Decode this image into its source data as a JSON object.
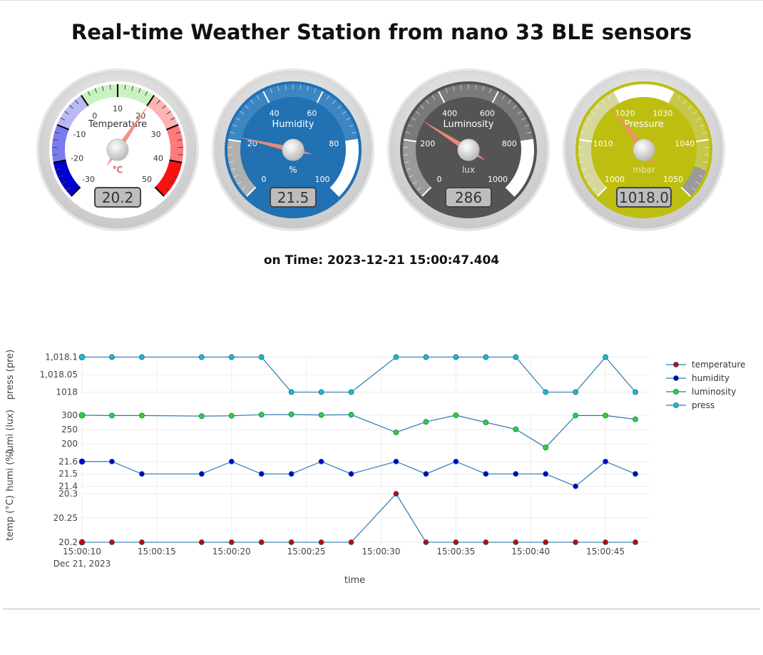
{
  "page": {
    "title": "Real-time Weather Station from nano 33 BLE sensors",
    "on_time_label": "on Time:",
    "on_time_value": "2023-12-21 15:00:47.404"
  },
  "gauges": [
    {
      "id": "temperature",
      "title": "Temperature",
      "units": "°C",
      "value": 20.2,
      "value_text": "20.2",
      "min": -30,
      "max": 50,
      "ticks": [
        "-30",
        "-20",
        "-10",
        "0",
        "10",
        "20",
        "30",
        "40",
        "50"
      ],
      "face_color": "#ffffff",
      "text_color": "#333333",
      "units_color": "#cc0000",
      "highlights": [
        {
          "from": -30,
          "to": -20,
          "color": "#0000cc"
        },
        {
          "from": -20,
          "to": -10,
          "color": "#7b7bf0"
        },
        {
          "from": -10,
          "to": 0,
          "color": "#b9b9f7"
        },
        {
          "from": 0,
          "to": 20,
          "color": "#c9f2c0"
        },
        {
          "from": 20,
          "to": 30,
          "color": "#ffb3b3"
        },
        {
          "from": 30,
          "to": 40,
          "color": "#ff7a7a"
        },
        {
          "from": 40,
          "to": 50,
          "color": "#ff1010"
        }
      ]
    },
    {
      "id": "humidity",
      "title": "Humidity",
      "units": "%",
      "value": 21.5,
      "value_text": "21.5",
      "min": 0,
      "max": 100,
      "ticks": [
        "0",
        "20",
        "40",
        "60",
        "80",
        "100"
      ],
      "face_color": "#2171b3",
      "text_color": "#ffffff",
      "units_color": "#ffffff",
      "highlights": [
        {
          "from": 0,
          "to": 20,
          "color": "#b0b0b0"
        },
        {
          "from": 20,
          "to": 80,
          "color": "#3c86c2"
        },
        {
          "from": 80,
          "to": 100,
          "color": "#ffffff"
        }
      ]
    },
    {
      "id": "luminosity",
      "title": "Luminosity",
      "units": "lux",
      "value": 286,
      "value_text": "286",
      "min": 0,
      "max": 1000,
      "ticks": [
        "0",
        "200",
        "400",
        "600",
        "800",
        "1000"
      ],
      "face_color": "#545454",
      "text_color": "#ffffff",
      "units_color": "#dddddd",
      "highlights": [
        {
          "from": 0,
          "to": 200,
          "color": "#9a9a9a"
        },
        {
          "from": 200,
          "to": 800,
          "color": "#7a7a7a"
        },
        {
          "from": 800,
          "to": 1000,
          "color": "#ffffff"
        }
      ]
    },
    {
      "id": "pressure",
      "title": "Pressure",
      "units": "mbar",
      "value": 1018.0,
      "value_text": "1018.0",
      "min": 1000,
      "max": 1050,
      "ticks": [
        "1000",
        "1010",
        "1020",
        "1030",
        "1040",
        "1050"
      ],
      "face_color": "#bdbe10",
      "text_color": "#ffffff",
      "units_color": "#e8e8a0",
      "highlights": [
        {
          "from": 1000,
          "to": 1020,
          "color": "#d6d79a"
        },
        {
          "from": 1020,
          "to": 1030,
          "color": "#ffffff"
        },
        {
          "from": 1030,
          "to": 1045,
          "color": "#c7c84a"
        },
        {
          "from": 1045,
          "to": 1050,
          "color": "#9a9a9a"
        }
      ]
    }
  ],
  "chart_data": {
    "type": "line",
    "xlabel": "time",
    "x_date_label": "Dec 21, 2023",
    "x": [
      "15:00:10",
      "15:00:12",
      "15:00:14",
      "15:00:18",
      "15:00:20",
      "15:00:22",
      "15:00:24",
      "15:00:26",
      "15:00:28",
      "15:00:31",
      "15:00:33",
      "15:00:35",
      "15:00:37",
      "15:00:39",
      "15:00:41",
      "15:00:43",
      "15:00:45",
      "15:00:47"
    ],
    "x_ticks": [
      "15:00:10",
      "15:00:15",
      "15:00:20",
      "15:00:25",
      "15:00:30",
      "15:00:35",
      "15:00:40",
      "15:00:45"
    ],
    "x_range": [
      "15:00:10",
      "15:00:48"
    ],
    "legend_position": "right",
    "grid": true,
    "series": [
      {
        "name": "temperature",
        "color": "#cc0000",
        "panel": "temp",
        "values": [
          20.2,
          20.2,
          20.2,
          20.2,
          20.2,
          20.2,
          20.2,
          20.2,
          20.2,
          20.3,
          20.2,
          20.2,
          20.2,
          20.2,
          20.2,
          20.2,
          20.2,
          20.2
        ]
      },
      {
        "name": "humidity",
        "color": "#0000cc",
        "panel": "humi",
        "values": [
          21.6,
          21.6,
          21.5,
          21.5,
          21.6,
          21.5,
          21.5,
          21.6,
          21.5,
          21.6,
          21.5,
          21.6,
          21.5,
          21.5,
          21.5,
          21.4,
          21.6,
          21.5
        ]
      },
      {
        "name": "luminosity",
        "color": "#22dd22",
        "panel": "lumi",
        "values": [
          300,
          299,
          299,
          297,
          298,
          302,
          303,
          301,
          302,
          240,
          277,
          300,
          275,
          251,
          187,
          299,
          299,
          286
        ]
      },
      {
        "name": "press",
        "color": "#17bec6",
        "panel": "press",
        "values": [
          1018.1,
          1018.1,
          1018.1,
          1018.1,
          1018.1,
          1018.1,
          1018.0,
          1018.0,
          1018.0,
          1018.1,
          1018.1,
          1018.1,
          1018.1,
          1018.1,
          1018.0,
          1018.0,
          1018.1,
          1018.0
        ]
      }
    ],
    "panels": [
      {
        "id": "press",
        "ylabel": "press (pre)",
        "ylim": [
          1017.995,
          1018.105
        ],
        "ticks": [
          1018.1,
          1018.05,
          1018.0
        ],
        "tick_labels": [
          "1,018.1",
          "1,018.05",
          "1018"
        ]
      },
      {
        "id": "lumi",
        "ylabel": "lumi (lux)",
        "ylim": [
          175,
          310
        ],
        "ticks": [
          300,
          250,
          200
        ],
        "tick_labels": [
          "300",
          "250",
          "200"
        ]
      },
      {
        "id": "humi",
        "ylabel": "humi (%)",
        "ylim": [
          21.38,
          21.68
        ],
        "ticks": [
          21.6,
          21.5,
          21.4
        ],
        "tick_labels": [
          "21.6",
          "21.5",
          "21.4"
        ]
      },
      {
        "id": "temp",
        "ylabel": "temp (°C)",
        "ylim": [
          20.197,
          20.303
        ],
        "ticks": [
          20.3,
          20.25,
          20.2
        ],
        "tick_labels": [
          "20.3",
          "20.25",
          "20.2"
        ]
      }
    ]
  }
}
